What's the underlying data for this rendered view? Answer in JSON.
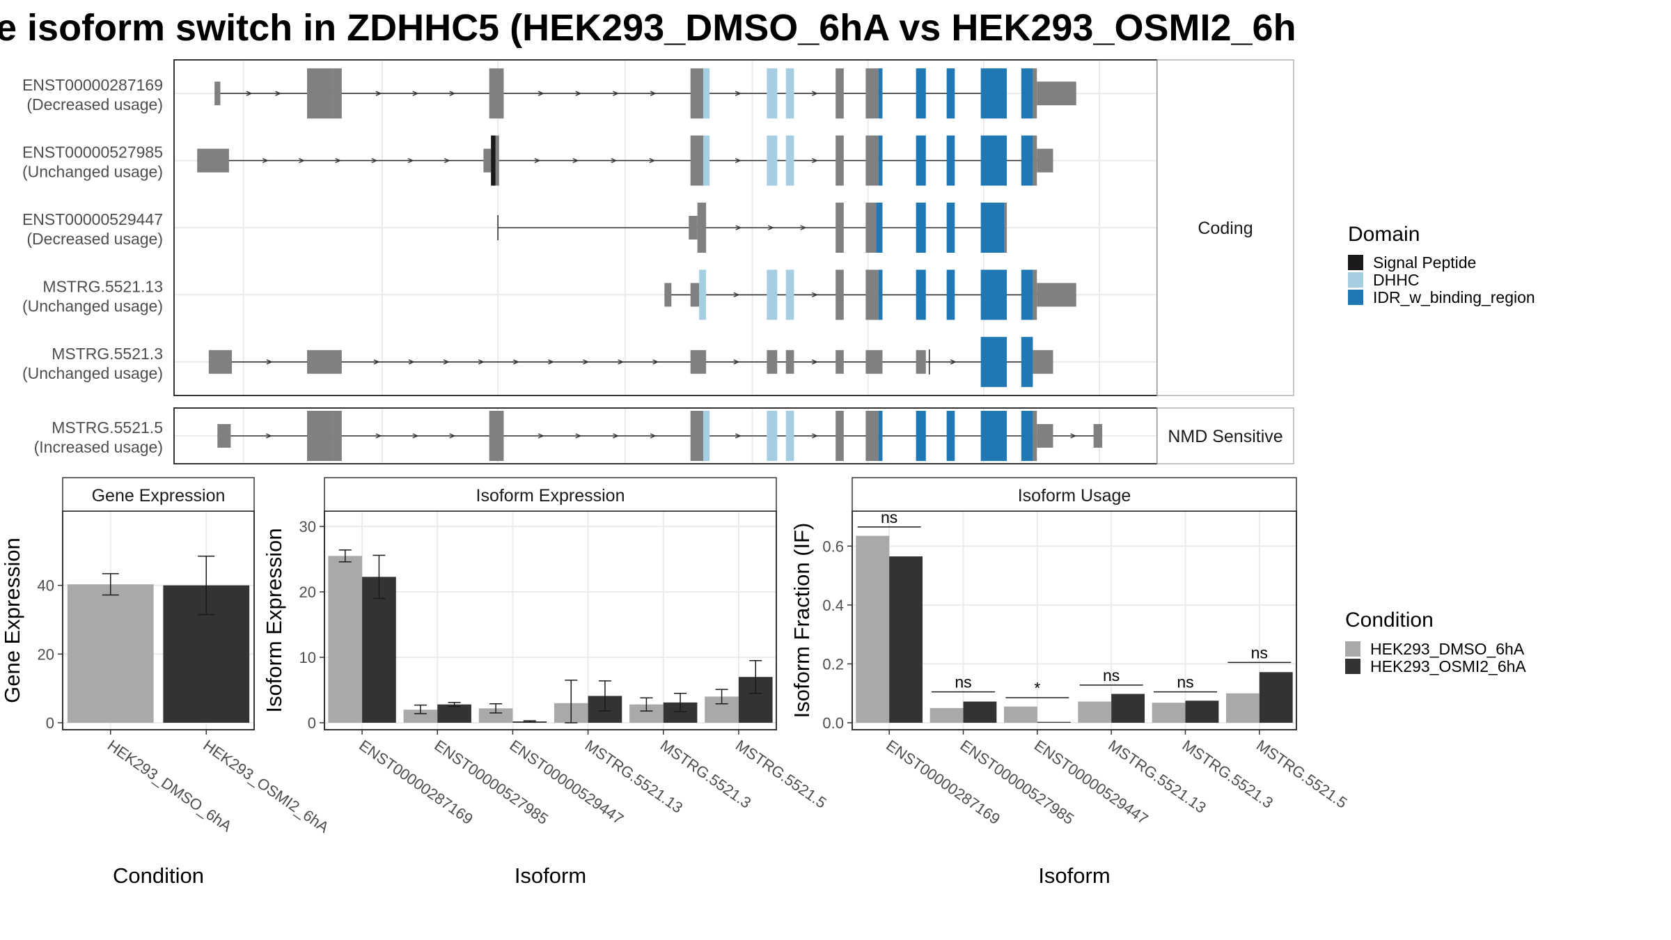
{
  "title": "e isoform switch in ZDHHC5 (HEK293_DMSO_6hA vs HEK293_OSMI2_6h",
  "colors": {
    "exon": "#808080",
    "Signal Peptide": "#1a1a1a",
    "DHHC": "#a6cee3",
    "IDR_w_binding_region": "#1f78b4",
    "HEK293_DMSO_6hA": "#a9a9a9",
    "HEK293_OSMI2_6hA": "#333333"
  },
  "structure": {
    "groups": [
      {
        "name": "Coding",
        "transcripts": [
          {
            "id": "ENST00000287169",
            "usage": "(Decreased usage)",
            "start": 70,
            "end": 1430,
            "exons": [
              [
                70,
                80,
                "s"
              ],
              [
                230,
                275,
                "t"
              ],
              [
                275,
                290,
                "t"
              ],
              [
                545,
                570,
                "t"
              ],
              [
                893,
                915,
                "t"
              ],
              [
                915,
                926,
                "DHHC"
              ],
              [
                1025,
                1043,
                "DHHC"
              ],
              [
                1058,
                1072,
                "DHHC"
              ],
              [
                1144,
                1158,
                "t"
              ],
              [
                1196,
                1218,
                "t"
              ],
              [
                1218,
                1225,
                "IDR_w_binding_region"
              ],
              [
                1283,
                1300,
                "IDR_w_binding_region"
              ],
              [
                1336,
                1350,
                "IDR_w_binding_region"
              ],
              [
                1395,
                1440,
                "IDR_w_binding_region"
              ],
              [
                1465,
                1485,
                "IDR_w_binding_region"
              ],
              [
                1485,
                1492,
                "t"
              ],
              [
                1492,
                1560,
                "s"
              ]
            ]
          },
          {
            "id": "ENST00000527985",
            "usage": "(Unchanged usage)",
            "start": 40,
            "end": 1510,
            "exons": [
              [
                40,
                95,
                "s"
              ],
              [
                535,
                548,
                "s"
              ],
              [
                548,
                556,
                "Signal Peptide"
              ],
              [
                556,
                562,
                "t"
              ],
              [
                893,
                915,
                "t"
              ],
              [
                915,
                926,
                "DHHC"
              ],
              [
                1025,
                1043,
                "DHHC"
              ],
              [
                1058,
                1072,
                "DHHC"
              ],
              [
                1144,
                1158,
                "t"
              ],
              [
                1196,
                1218,
                "t"
              ],
              [
                1218,
                1225,
                "IDR_w_binding_region"
              ],
              [
                1283,
                1300,
                "IDR_w_binding_region"
              ],
              [
                1336,
                1350,
                "IDR_w_binding_region"
              ],
              [
                1395,
                1440,
                "IDR_w_binding_region"
              ],
              [
                1465,
                1485,
                "IDR_w_binding_region"
              ],
              [
                1485,
                1492,
                "t"
              ],
              [
                1492,
                1520,
                "s"
              ]
            ]
          },
          {
            "id": "ENST00000529447",
            "usage": "(Decreased usage)",
            "start": 560,
            "end": 1440,
            "exons": [
              [
                890,
                905,
                "s"
              ],
              [
                905,
                920,
                "t"
              ],
              [
                1144,
                1158,
                "t"
              ],
              [
                1196,
                1214,
                "t"
              ],
              [
                1214,
                1225,
                "IDR_w_binding_region"
              ],
              [
                1283,
                1300,
                "IDR_w_binding_region"
              ],
              [
                1336,
                1350,
                "IDR_w_binding_region"
              ],
              [
                1395,
                1436,
                "IDR_w_binding_region"
              ],
              [
                1436,
                1440,
                "t"
              ]
            ]
          },
          {
            "id": "MSTRG.5521.13",
            "usage": "(Unchanged usage)",
            "start": 848,
            "end": 1560,
            "exons": [
              [
                848,
                860,
                "s"
              ],
              [
                893,
                908,
                "s"
              ],
              [
                908,
                920,
                "DHHC"
              ],
              [
                1025,
                1043,
                "DHHC"
              ],
              [
                1058,
                1072,
                "DHHC"
              ],
              [
                1144,
                1158,
                "t"
              ],
              [
                1196,
                1218,
                "t"
              ],
              [
                1218,
                1225,
                "IDR_w_binding_region"
              ],
              [
                1283,
                1300,
                "IDR_w_binding_region"
              ],
              [
                1336,
                1350,
                "IDR_w_binding_region"
              ],
              [
                1395,
                1440,
                "IDR_w_binding_region"
              ],
              [
                1465,
                1485,
                "IDR_w_binding_region"
              ],
              [
                1485,
                1492,
                "t"
              ],
              [
                1492,
                1560,
                "s"
              ]
            ]
          },
          {
            "id": "MSTRG.5521.3",
            "usage": "(Unchanged usage)",
            "start": 60,
            "end": 1520,
            "exons": [
              [
                60,
                100,
                "s"
              ],
              [
                230,
                290,
                "s"
              ],
              [
                893,
                920,
                "s"
              ],
              [
                1025,
                1043,
                "s"
              ],
              [
                1058,
                1072,
                "s"
              ],
              [
                1144,
                1158,
                "s"
              ],
              [
                1196,
                1225,
                "s"
              ],
              [
                1283,
                1300,
                "s"
              ],
              [
                1395,
                1440,
                "IDR_w_binding_region"
              ],
              [
                1465,
                1485,
                "IDR_w_binding_region"
              ],
              [
                1485,
                1520,
                "s"
              ]
            ]
          }
        ]
      },
      {
        "name": "NMD Sensitive",
        "transcripts": [
          {
            "id": "MSTRG.5521.5",
            "usage": "(Increased usage)",
            "start": 75,
            "end": 1605,
            "exons": [
              [
                75,
                98,
                "s"
              ],
              [
                230,
                275,
                "t"
              ],
              [
                275,
                290,
                "t"
              ],
              [
                545,
                570,
                "t"
              ],
              [
                893,
                915,
                "t"
              ],
              [
                915,
                926,
                "DHHC"
              ],
              [
                1025,
                1043,
                "DHHC"
              ],
              [
                1058,
                1072,
                "DHHC"
              ],
              [
                1144,
                1158,
                "t"
              ],
              [
                1196,
                1218,
                "t"
              ],
              [
                1218,
                1225,
                "IDR_w_binding_region"
              ],
              [
                1283,
                1300,
                "IDR_w_binding_region"
              ],
              [
                1336,
                1350,
                "IDR_w_binding_region"
              ],
              [
                1395,
                1440,
                "IDR_w_binding_region"
              ],
              [
                1465,
                1485,
                "IDR_w_binding_region"
              ],
              [
                1485,
                1492,
                "t"
              ],
              [
                1492,
                1520,
                "s"
              ],
              [
                1590,
                1605,
                "s"
              ]
            ]
          }
        ]
      }
    ],
    "domain_legend": {
      "title": "Domain",
      "items": [
        "Signal Peptide",
        "DHHC",
        "IDR_w_binding_region"
      ]
    }
  },
  "chart_data": [
    {
      "type": "bar",
      "title": "Gene Expression",
      "xlabel": "Condition",
      "ylabel": "Gene Expression",
      "ylim": [
        0,
        60
      ],
      "yticks": [
        0,
        20,
        40
      ],
      "categories": [
        "HEK293_DMSO_6hA",
        "HEK293_OSMI2_6hA"
      ],
      "values": [
        40.3,
        40.0
      ],
      "errors": [
        [
          37.2,
          43.4
        ],
        [
          31.5,
          48.5
        ]
      ]
    },
    {
      "type": "bar",
      "title": "Isoform Expression",
      "xlabel": "Isoform",
      "ylabel": "Isoform Expression",
      "ylim": [
        0,
        31.5
      ],
      "yticks": [
        0,
        10,
        20,
        30
      ],
      "categories": [
        "ENST00000287169",
        "ENST00000527985",
        "ENST00000529447",
        "MSTRG.5521.13",
        "MSTRG.5521.3",
        "MSTRG.5521.5"
      ],
      "series": [
        {
          "name": "HEK293_DMSO_6hA",
          "values": [
            25.5,
            2.0,
            2.2,
            3.0,
            2.8,
            4.0
          ],
          "errors": [
            [
              24.6,
              26.4
            ],
            [
              1.4,
              2.7
            ],
            [
              1.5,
              2.9
            ],
            [
              0.0,
              6.5
            ],
            [
              1.8,
              3.8
            ],
            [
              2.9,
              5.1
            ]
          ]
        },
        {
          "name": "HEK293_OSMI2_6hA",
          "values": [
            22.3,
            2.8,
            0.2,
            4.1,
            3.1,
            7.0
          ],
          "errors": [
            [
              19.0,
              25.6
            ],
            [
              2.5,
              3.1
            ],
            [
              0.1,
              0.3
            ],
            [
              1.8,
              6.4
            ],
            [
              1.7,
              4.5
            ],
            [
              4.5,
              9.5
            ]
          ]
        }
      ]
    },
    {
      "type": "bar",
      "title": "Isoform Usage",
      "xlabel": "Isoform",
      "ylabel": "Isoform Fraction (IF)",
      "ylim": [
        0,
        0.7
      ],
      "yticks": [
        "0.0",
        "0.2",
        "0.4",
        "0.6"
      ],
      "categories": [
        "ENST00000287169",
        "ENST00000527985",
        "ENST00000529447",
        "MSTRG.5521.13",
        "MSTRG.5521.3",
        "MSTRG.5521.5"
      ],
      "series": [
        {
          "name": "HEK293_DMSO_6hA",
          "values": [
            0.635,
            0.05,
            0.055,
            0.072,
            0.068,
            0.1
          ]
        },
        {
          "name": "HEK293_OSMI2_6hA",
          "values": [
            0.565,
            0.072,
            0.003,
            0.098,
            0.075,
            0.172
          ]
        }
      ],
      "significance": [
        {
          "label": "ns",
          "level": 0.665
        },
        {
          "label": "ns",
          "level": 0.105
        },
        {
          "label": "*",
          "level": 0.085
        },
        {
          "label": "ns",
          "level": 0.128
        },
        {
          "label": "ns",
          "level": 0.105
        },
        {
          "label": "ns",
          "level": 0.205
        }
      ]
    }
  ],
  "condition_legend": {
    "title": "Condition",
    "items": [
      "HEK293_DMSO_6hA",
      "HEK293_OSMI2_6hA"
    ]
  }
}
